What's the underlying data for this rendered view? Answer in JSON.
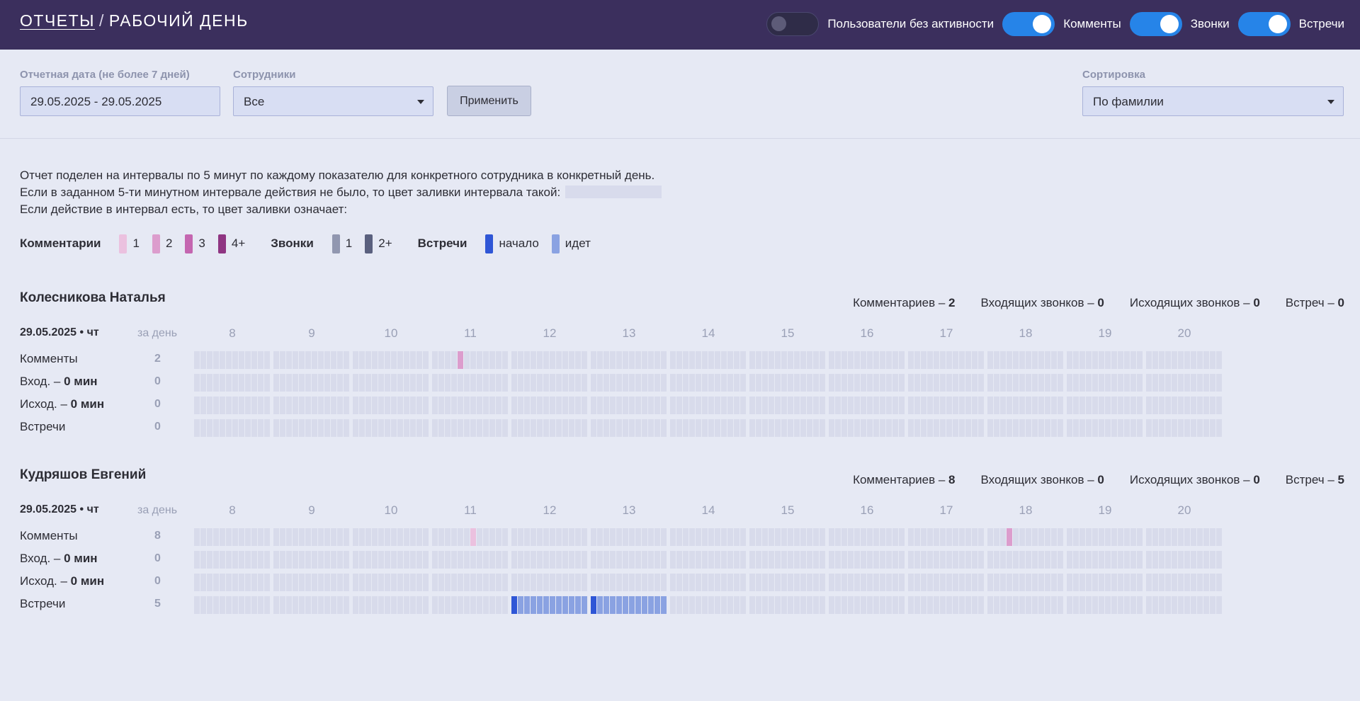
{
  "header": {
    "crumb_reports": "ОТЧЕТЫ",
    "separator": "/",
    "crumb_current": "РАБОЧИЙ ДЕНЬ",
    "toggles": [
      {
        "label": "Пользователи без активности",
        "on": false
      },
      {
        "label": "Комменты",
        "on": true
      },
      {
        "label": "Звонки",
        "on": true
      },
      {
        "label": "Встречи",
        "on": true
      }
    ]
  },
  "filters": {
    "date_label": "Отчетная дата (не более 7 дней)",
    "date_value": "29.05.2025 - 29.05.2025",
    "employees_label": "Сотрудники",
    "employees_value": "Все",
    "apply_label": "Применить",
    "sort_label": "Сортировка",
    "sort_value": "По фамилии"
  },
  "description": {
    "line1": "Отчет поделен на интервалы по 5 минут по каждому показателю для конкретного сотрудника в конкретный день.",
    "line2": "Если в заданном 5-ти минутном интервале действия не было, то цвет заливки интервала такой:",
    "line3": "Если действие в интервал есть, то цвет заливки означает:"
  },
  "legend": {
    "comments_title": "Комментарии",
    "comments": [
      {
        "label": "1",
        "color": "#ebc1df"
      },
      {
        "label": "2",
        "color": "#dc9dcd"
      },
      {
        "label": "3",
        "color": "#c466b0"
      },
      {
        "label": "4+",
        "color": "#8f3582"
      }
    ],
    "calls_title": "Звонки",
    "calls": [
      {
        "label": "1",
        "color": "#9197b0"
      },
      {
        "label": "2+",
        "color": "#5a607e"
      }
    ],
    "meetings_title": "Встречи",
    "meetings": [
      {
        "label": "начало",
        "color": "#2f56d6"
      },
      {
        "label": "идет",
        "color": "#8aa2e2"
      }
    ]
  },
  "colors": {
    "empty": "#d8dbeb",
    "comment_1": "#ebc1df",
    "comment_2": "#dc9dcd",
    "meeting_start": "#2f56d6",
    "meeting_ongoing": "#8aa2e2"
  },
  "hours": [
    "8",
    "9",
    "10",
    "11",
    "12",
    "13",
    "14",
    "15",
    "16",
    "17",
    "18",
    "19",
    "20"
  ],
  "employees": [
    {
      "name": "Колесникова Наталья",
      "stats": [
        {
          "label": "Комментариев –",
          "value": "2"
        },
        {
          "label": "Входящих звонков –",
          "value": "0"
        },
        {
          "label": "Исходящих звонков –",
          "value": "0"
        },
        {
          "label": "Встреч –",
          "value": "0"
        }
      ],
      "date": "29.05.2025 • чт",
      "per_day": "за день",
      "rows": [
        {
          "label": "Комменты",
          "suffix": "",
          "value": "2"
        },
        {
          "label": "Вход. – ",
          "suffix": "0 мин",
          "value": "0"
        },
        {
          "label": "Исход. – ",
          "suffix": "0 мин",
          "value": "0"
        },
        {
          "label": "Встречи",
          "suffix": "",
          "value": "0"
        }
      ],
      "activity": [
        {
          "row": 0,
          "hour": 11,
          "slot": 4,
          "kind": "comment_2"
        }
      ]
    },
    {
      "name": "Кудряшов Евгений",
      "stats": [
        {
          "label": "Комментариев –",
          "value": "8"
        },
        {
          "label": "Входящих звонков –",
          "value": "0"
        },
        {
          "label": "Исходящих звонков –",
          "value": "0"
        },
        {
          "label": "Встреч –",
          "value": "5"
        }
      ],
      "date": "29.05.2025 • чт",
      "per_day": "за день",
      "rows": [
        {
          "label": "Комменты",
          "suffix": "",
          "value": "8"
        },
        {
          "label": "Вход. – ",
          "suffix": "0 мин",
          "value": "0"
        },
        {
          "label": "Исход. – ",
          "suffix": "0 мин",
          "value": "0"
        },
        {
          "label": "Встречи",
          "suffix": "",
          "value": "5"
        }
      ],
      "activity": [
        {
          "row": 0,
          "hour": 11,
          "slot": 6,
          "kind": "comment_1"
        },
        {
          "row": 0,
          "hour": 18,
          "slot": 3,
          "kind": "comment_2"
        },
        {
          "row": 3,
          "hour": 12,
          "slot": 0,
          "kind": "meeting_start"
        },
        {
          "row": 3,
          "hour": 12,
          "slot": 1,
          "kind": "meeting_ongoing"
        },
        {
          "row": 3,
          "hour": 12,
          "slot": 2,
          "kind": "meeting_ongoing"
        },
        {
          "row": 3,
          "hour": 12,
          "slot": 3,
          "kind": "meeting_ongoing"
        },
        {
          "row": 3,
          "hour": 12,
          "slot": 4,
          "kind": "meeting_ongoing"
        },
        {
          "row": 3,
          "hour": 12,
          "slot": 5,
          "kind": "meeting_ongoing"
        },
        {
          "row": 3,
          "hour": 12,
          "slot": 6,
          "kind": "meeting_ongoing"
        },
        {
          "row": 3,
          "hour": 12,
          "slot": 7,
          "kind": "meeting_ongoing"
        },
        {
          "row": 3,
          "hour": 12,
          "slot": 8,
          "kind": "meeting_ongoing"
        },
        {
          "row": 3,
          "hour": 12,
          "slot": 9,
          "kind": "meeting_ongoing"
        },
        {
          "row": 3,
          "hour": 12,
          "slot": 10,
          "kind": "meeting_ongoing"
        },
        {
          "row": 3,
          "hour": 12,
          "slot": 11,
          "kind": "meeting_ongoing"
        },
        {
          "row": 3,
          "hour": 13,
          "slot": 0,
          "kind": "meeting_start"
        },
        {
          "row": 3,
          "hour": 13,
          "slot": 1,
          "kind": "meeting_ongoing"
        },
        {
          "row": 3,
          "hour": 13,
          "slot": 2,
          "kind": "meeting_ongoing"
        },
        {
          "row": 3,
          "hour": 13,
          "slot": 3,
          "kind": "meeting_ongoing"
        },
        {
          "row": 3,
          "hour": 13,
          "slot": 4,
          "kind": "meeting_ongoing"
        },
        {
          "row": 3,
          "hour": 13,
          "slot": 5,
          "kind": "meeting_ongoing"
        },
        {
          "row": 3,
          "hour": 13,
          "slot": 6,
          "kind": "meeting_ongoing"
        },
        {
          "row": 3,
          "hour": 13,
          "slot": 7,
          "kind": "meeting_ongoing"
        },
        {
          "row": 3,
          "hour": 13,
          "slot": 8,
          "kind": "meeting_ongoing"
        },
        {
          "row": 3,
          "hour": 13,
          "slot": 9,
          "kind": "meeting_ongoing"
        },
        {
          "row": 3,
          "hour": 13,
          "slot": 10,
          "kind": "meeting_ongoing"
        },
        {
          "row": 3,
          "hour": 13,
          "slot": 11,
          "kind": "meeting_ongoing"
        }
      ]
    }
  ]
}
